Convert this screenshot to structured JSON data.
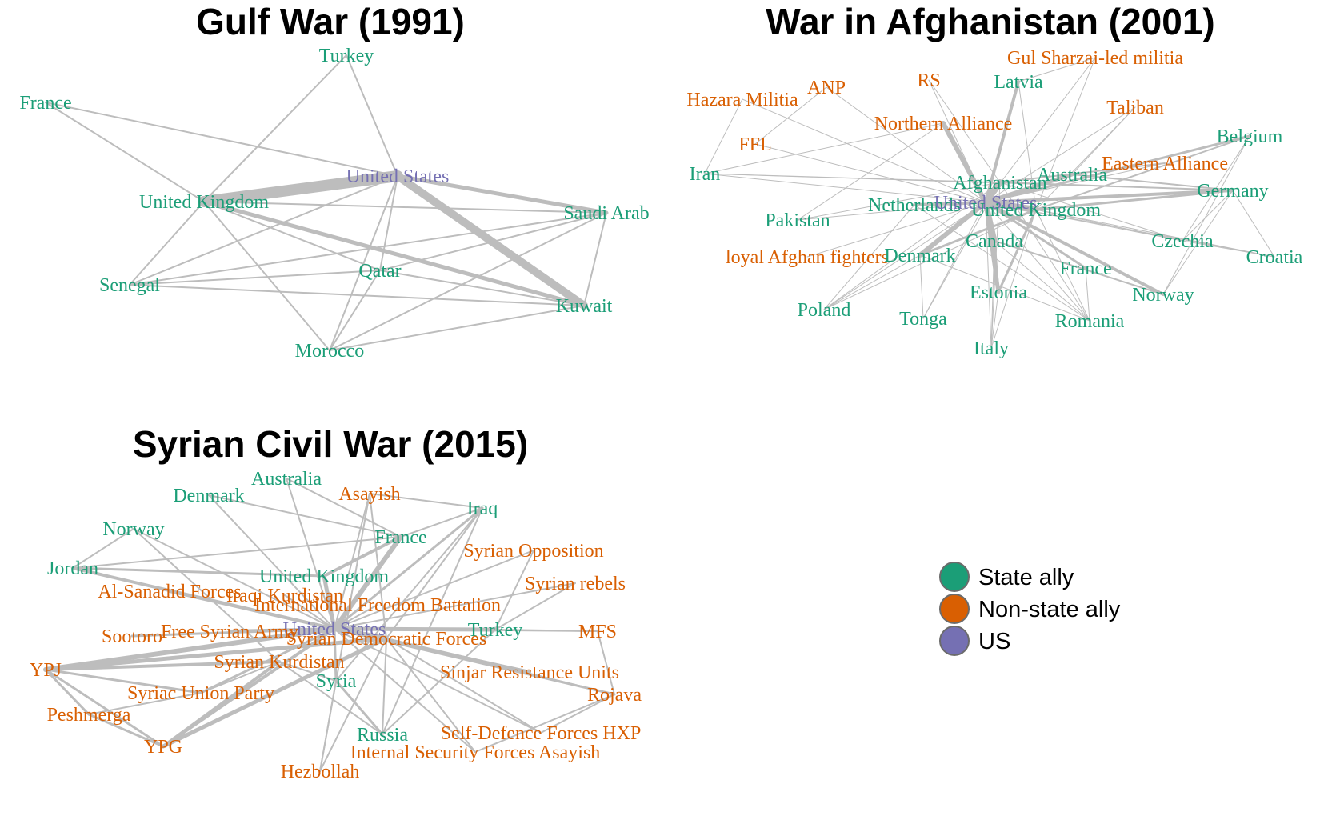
{
  "colors": {
    "state": "#1b9e77",
    "nonstate": "#d95f02",
    "us": "#7570b3",
    "edge": "#bdbdbd"
  },
  "legend": {
    "items": [
      {
        "label": "State ally",
        "type": "state"
      },
      {
        "label": "Non-state ally",
        "type": "nonstate"
      },
      {
        "label": "US",
        "type": "us"
      }
    ]
  },
  "panels": [
    {
      "title": "Gulf War (1991)",
      "nodes": [
        {
          "name": "Turkey",
          "type": "state"
        },
        {
          "name": "France",
          "type": "state"
        },
        {
          "name": "United States",
          "type": "us"
        },
        {
          "name": "United Kingdom",
          "type": "state"
        },
        {
          "name": "Saudi Arab",
          "type": "state"
        },
        {
          "name": "Senegal",
          "type": "state"
        },
        {
          "name": "Qatar",
          "type": "state"
        },
        {
          "name": "Kuwait",
          "type": "state"
        },
        {
          "name": "Morocco",
          "type": "state"
        }
      ],
      "edges": [
        [
          "United States",
          "United Kingdom",
          14
        ],
        [
          "United States",
          "Kuwait",
          10
        ],
        [
          "United States",
          "Saudi Arab",
          5
        ],
        [
          "United Kingdom",
          "Kuwait",
          5
        ],
        [
          "United Kingdom",
          "Saudi Arab",
          2
        ],
        [
          "France",
          "United States",
          2
        ],
        [
          "France",
          "United Kingdom",
          2
        ],
        [
          "Turkey",
          "United States",
          2
        ],
        [
          "Turkey",
          "United Kingdom",
          2
        ],
        [
          "Senegal",
          "United States",
          2
        ],
        [
          "Senegal",
          "United Kingdom",
          2
        ],
        [
          "Senegal",
          "Qatar",
          2
        ],
        [
          "Senegal",
          "Kuwait",
          2
        ],
        [
          "Senegal",
          "Saudi Arab",
          2
        ],
        [
          "Qatar",
          "United States",
          2
        ],
        [
          "Qatar",
          "United Kingdom",
          2
        ],
        [
          "Qatar",
          "Kuwait",
          2
        ],
        [
          "Qatar",
          "Saudi Arab",
          2
        ],
        [
          "Morocco",
          "United States",
          2
        ],
        [
          "Morocco",
          "United Kingdom",
          2
        ],
        [
          "Morocco",
          "Kuwait",
          2
        ],
        [
          "Morocco",
          "Saudi Arab",
          2
        ],
        [
          "Morocco",
          "Qatar",
          2
        ],
        [
          "Saudi Arab",
          "Kuwait",
          2
        ]
      ]
    },
    {
      "title": "War in Afghanistan (2001)",
      "nodes": [
        {
          "name": "Gul Sharzai-led militia",
          "type": "nonstate"
        },
        {
          "name": "ANP",
          "type": "nonstate"
        },
        {
          "name": "RS",
          "type": "nonstate"
        },
        {
          "name": "Latvia",
          "type": "state"
        },
        {
          "name": "Hazara Militia",
          "type": "nonstate"
        },
        {
          "name": "Taliban",
          "type": "nonstate"
        },
        {
          "name": "Northern Alliance",
          "type": "nonstate"
        },
        {
          "name": "Belgium",
          "type": "state"
        },
        {
          "name": "FFL",
          "type": "nonstate"
        },
        {
          "name": "Eastern Alliance",
          "type": "nonstate"
        },
        {
          "name": "Iran",
          "type": "state"
        },
        {
          "name": "Afghanistan",
          "type": "state"
        },
        {
          "name": "Australia",
          "type": "state"
        },
        {
          "name": "Germany",
          "type": "state"
        },
        {
          "name": "Netherlands",
          "type": "state"
        },
        {
          "name": "United States",
          "type": "us"
        },
        {
          "name": "United Kingdom",
          "type": "state"
        },
        {
          "name": "Pakistan",
          "type": "state"
        },
        {
          "name": "Canada",
          "type": "state"
        },
        {
          "name": "Czechia",
          "type": "state"
        },
        {
          "name": "loyal Afghan fighters",
          "type": "nonstate"
        },
        {
          "name": "Denmark",
          "type": "state"
        },
        {
          "name": "France",
          "type": "state"
        },
        {
          "name": "Croatia",
          "type": "state"
        },
        {
          "name": "Estonia",
          "type": "state"
        },
        {
          "name": "Norway",
          "type": "state"
        },
        {
          "name": "Poland",
          "type": "state"
        },
        {
          "name": "Tonga",
          "type": "state"
        },
        {
          "name": "Romania",
          "type": "state"
        },
        {
          "name": "Italy",
          "type": "state"
        }
      ],
      "edges": [
        [
          "United States",
          "Afghanistan",
          8
        ],
        [
          "United States",
          "United Kingdom",
          8
        ],
        [
          "United States",
          "Northern Alliance",
          6
        ],
        [
          "United States",
          "Canada",
          7
        ],
        [
          "United States",
          "Denmark",
          6
        ],
        [
          "United States",
          "Australia",
          5
        ],
        [
          "United States",
          "Germany",
          4
        ],
        [
          "United States",
          "Latvia",
          4
        ],
        [
          "United States",
          "Estonia",
          5
        ],
        [
          "United States",
          "Norway",
          4
        ],
        [
          "United States",
          "Netherlands",
          4
        ],
        [
          "United States",
          "Belgium",
          3
        ],
        [
          "United States",
          "France",
          3
        ],
        [
          "United Kingdom",
          "Germany",
          3
        ],
        [
          "United Kingdom",
          "Denmark",
          3
        ],
        [
          "United Kingdom",
          "Estonia",
          3
        ],
        [
          "United Kingdom",
          "Belgium",
          2
        ],
        [
          "Afghanistan",
          "Germany",
          2
        ],
        [
          "Afghanistan",
          "Eastern Alliance",
          2
        ],
        [
          "Canada",
          "Estonia",
          3
        ],
        [
          "Canada",
          "Norway",
          2
        ],
        [
          "Australia",
          "Germany",
          2
        ],
        [
          "United States",
          "Gul Sharzai-led militia",
          1
        ],
        [
          "United States",
          "RS",
          1
        ],
        [
          "United States",
          "Taliban",
          1
        ],
        [
          "United States",
          "Eastern Alliance",
          1
        ],
        [
          "United States",
          "Iran",
          1
        ],
        [
          "United States",
          "Pakistan",
          1
        ],
        [
          "United States",
          "loyal Afghan fighters",
          1
        ],
        [
          "United States",
          "Czechia",
          1
        ],
        [
          "United States",
          "Croatia",
          1
        ],
        [
          "United States",
          "Poland",
          1
        ],
        [
          "United States",
          "Tonga",
          1
        ],
        [
          "United States",
          "Romania",
          1
        ],
        [
          "United States",
          "Italy",
          1
        ],
        [
          "United States",
          "FFL",
          1
        ],
        [
          "United States",
          "Hazara Militia",
          1
        ],
        [
          "United States",
          "ANP",
          1
        ],
        [
          "United Kingdom",
          "Romania",
          1
        ],
        [
          "United Kingdom",
          "Italy",
          1
        ],
        [
          "United Kingdom",
          "Czechia",
          1
        ],
        [
          "United Kingdom",
          "Croatia",
          1
        ],
        [
          "United Kingdom",
          "Poland",
          1
        ],
        [
          "United Kingdom",
          "Latvia",
          1
        ],
        [
          "United Kingdom",
          "Taliban",
          1
        ],
        [
          "United Kingdom",
          "Gul Sharzai-led militia",
          1
        ],
        [
          "Afghanistan",
          "Iran",
          1
        ],
        [
          "Afghanistan",
          "Pakistan",
          1
        ],
        [
          "Afghanistan",
          "Czechia",
          1
        ],
        [
          "Afghanistan",
          "Romania",
          1
        ],
        [
          "Afghanistan",
          "Tonga",
          1
        ],
        [
          "Afghanistan",
          "Italy",
          1
        ],
        [
          "Afghanistan",
          "Poland",
          1
        ],
        [
          "Afghanistan",
          "RS",
          1
        ],
        [
          "Germany",
          "Norway",
          1
        ],
        [
          "Germany",
          "Croatia",
          1
        ],
        [
          "Germany",
          "Czechia",
          1
        ],
        [
          "Belgium",
          "Norway",
          1
        ],
        [
          "Belgium",
          "Czechia",
          1
        ],
        [
          "Denmark",
          "Poland",
          1
        ],
        [
          "Denmark",
          "Tonga",
          1
        ],
        [
          "Denmark",
          "Romania",
          1
        ],
        [
          "Netherlands",
          "Poland",
          1
        ],
        [
          "Netherlands",
          "Romania",
          1
        ],
        [
          "Northern Alliance",
          "Iran",
          1
        ],
        [
          "Northern Alliance",
          "Pakistan",
          1
        ],
        [
          "Hazara Militia",
          "Iran",
          1
        ],
        [
          "ANP",
          "FFL",
          1
        ],
        [
          "Iran",
          "Germany",
          1
        ],
        [
          "Canada",
          "Romania",
          1
        ],
        [
          "Canada",
          "Italy",
          1
        ],
        [
          "France",
          "Romania",
          1
        ],
        [
          "Estonia",
          "Italy",
          1
        ],
        [
          "Czechia",
          "Croatia",
          1
        ],
        [
          "Latvia",
          "Gul Sharzai-led militia",
          1
        ],
        [
          "Taliban",
          "Australia",
          1
        ]
      ]
    },
    {
      "title": "Syrian Civil War (2015)",
      "nodes": [
        {
          "name": "Australia",
          "type": "state"
        },
        {
          "name": "Denmark",
          "type": "state"
        },
        {
          "name": "Asayish",
          "type": "nonstate"
        },
        {
          "name": "Iraq",
          "type": "state"
        },
        {
          "name": "Norway",
          "type": "state"
        },
        {
          "name": "France",
          "type": "state"
        },
        {
          "name": "Syrian Opposition",
          "type": "nonstate"
        },
        {
          "name": "Jordan",
          "type": "state"
        },
        {
          "name": "United Kingdom",
          "type": "state"
        },
        {
          "name": "Syrian rebels",
          "type": "nonstate"
        },
        {
          "name": "Al-Sanadid Forces",
          "type": "nonstate"
        },
        {
          "name": "Iraqi Kurdistan",
          "type": "nonstate"
        },
        {
          "name": "International Freedom Battalion",
          "type": "nonstate"
        },
        {
          "name": "United States",
          "type": "us"
        },
        {
          "name": "Turkey",
          "type": "state"
        },
        {
          "name": "MFS",
          "type": "nonstate"
        },
        {
          "name": "Sootoro",
          "type": "nonstate"
        },
        {
          "name": "Free Syrian Army",
          "type": "nonstate"
        },
        {
          "name": "Syrian Democratic Forces",
          "type": "nonstate"
        },
        {
          "name": "Syrian Kurdistan",
          "type": "nonstate"
        },
        {
          "name": "YPJ",
          "type": "nonstate"
        },
        {
          "name": "Sinjar Resistance Units",
          "type": "nonstate"
        },
        {
          "name": "Syria",
          "type": "state"
        },
        {
          "name": "Syriac Union Party",
          "type": "nonstate"
        },
        {
          "name": "Rojava",
          "type": "nonstate"
        },
        {
          "name": "Peshmerga",
          "type": "nonstate"
        },
        {
          "name": "Russia",
          "type": "state"
        },
        {
          "name": "Self-Defence Forces HXP",
          "type": "nonstate"
        },
        {
          "name": "YPG",
          "type": "nonstate"
        },
        {
          "name": "Internal Security Forces Asayish",
          "type": "nonstate"
        },
        {
          "name": "Hezbollah",
          "type": "nonstate"
        }
      ],
      "edges": [
        [
          "YPJ",
          "United States",
          6
        ],
        [
          "YPJ",
          "Syrian Democratic Forces",
          5
        ],
        [
          "YPJ",
          "Syrian Kurdistan",
          4
        ],
        [
          "YPJ",
          "Peshmerga",
          3
        ],
        [
          "YPJ",
          "YPG",
          3
        ],
        [
          "YPJ",
          "Syriac Union Party",
          3
        ],
        [
          "YPG",
          "Syrian Democratic Forces",
          5
        ],
        [
          "YPG",
          "United States",
          4
        ],
        [
          "YPG",
          "Syrian Kurdistan",
          4
        ],
        [
          "YPG",
          "Peshmerga",
          3
        ],
        [
          "United States",
          "France",
          6
        ],
        [
          "United States",
          "United Kingdom",
          5
        ],
        [
          "United States",
          "Turkey",
          5
        ],
        [
          "United States",
          "Syrian Democratic Forces",
          6
        ],
        [
          "United States",
          "Jordan",
          4
        ],
        [
          "United States",
          "Al-Sanadid Forces",
          4
        ],
        [
          "United States",
          "Free Syrian Army",
          4
        ],
        [
          "United States",
          "Sinjar Resistance Units",
          4
        ],
        [
          "United States",
          "Rojava",
          3
        ],
        [
          "United States",
          "Iraq",
          3
        ],
        [
          "United States",
          "Syriac Union Party",
          3
        ],
        [
          "United States",
          "Sootoro",
          3
        ],
        [
          "United States",
          "Syria",
          3
        ],
        [
          "United Kingdom",
          "France",
          4
        ],
        [
          "United Kingdom",
          "Jordan",
          3
        ],
        [
          "Syria",
          "Russia",
          3
        ],
        [
          "Syria",
          "Hezbollah",
          2
        ],
        [
          "Syria",
          "Iraq",
          2
        ],
        [
          "United States",
          "Australia",
          2
        ],
        [
          "United States",
          "Denmark",
          2
        ],
        [
          "United States",
          "Norway",
          2
        ],
        [
          "United States",
          "Asayish",
          2
        ],
        [
          "United States",
          "Syrian Opposition",
          2
        ],
        [
          "United States",
          "Syrian rebels",
          2
        ],
        [
          "United States",
          "MFS",
          2
        ],
        [
          "United States",
          "Iraqi Kurdistan",
          2
        ],
        [
          "United States",
          "International Freedom Battalion",
          2
        ],
        [
          "United States",
          "Self-Defence Forces HXP",
          2
        ],
        [
          "United States",
          "Internal Security Forces Asayish",
          2
        ],
        [
          "Syrian Democratic Forces",
          "Self-Defence Forces HXP",
          2
        ],
        [
          "Syrian Democratic Forces",
          "Internal Security Forces Asayish",
          2
        ],
        [
          "Syrian Democratic Forces",
          "Sinjar Resistance Units",
          2
        ],
        [
          "Syrian Democratic Forces",
          "Rojava",
          2
        ],
        [
          "Syrian Democratic Forces",
          "Russia",
          2
        ],
        [
          "Syrian Democratic Forces",
          "Hezbollah",
          2
        ],
        [
          "Syrian Democratic Forces",
          "Asayish",
          2
        ],
        [
          "Syrian Democratic Forces",
          "Iraq",
          2
        ],
        [
          "Syrian Kurdistan",
          "Russia",
          2
        ],
        [
          "Syrian Kurdistan",
          "Syria",
          2
        ],
        [
          "France",
          "Iraq",
          2
        ],
        [
          "France",
          "Jordan",
          2
        ],
        [
          "France",
          "Australia",
          2
        ],
        [
          "France",
          "Denmark",
          2
        ],
        [
          "Norway",
          "Jordan",
          2
        ],
        [
          "Norway",
          "Syrian Kurdistan",
          2
        ],
        [
          "Turkey",
          "MFS",
          2
        ],
        [
          "Turkey",
          "Syrian rebels",
          2
        ],
        [
          "Turkey",
          "Syrian Opposition",
          2
        ],
        [
          "Turkey",
          "Russia",
          2
        ],
        [
          "Rojava",
          "MFS",
          2
        ],
        [
          "Rojava",
          "Self-Defence Forces HXP",
          2
        ],
        [
          "Rojava",
          "Internal Security Forces Asayish",
          2
        ],
        [
          "Iraq",
          "Asayish",
          2
        ],
        [
          "Iraq",
          "Russia",
          2
        ],
        [
          "Hezbollah",
          "Asayish",
          2
        ],
        [
          "Peshmerga",
          "Syriac Union Party",
          2
        ],
        [
          "Syriac Union Party",
          "Syrian Kurdistan",
          2
        ]
      ]
    }
  ]
}
